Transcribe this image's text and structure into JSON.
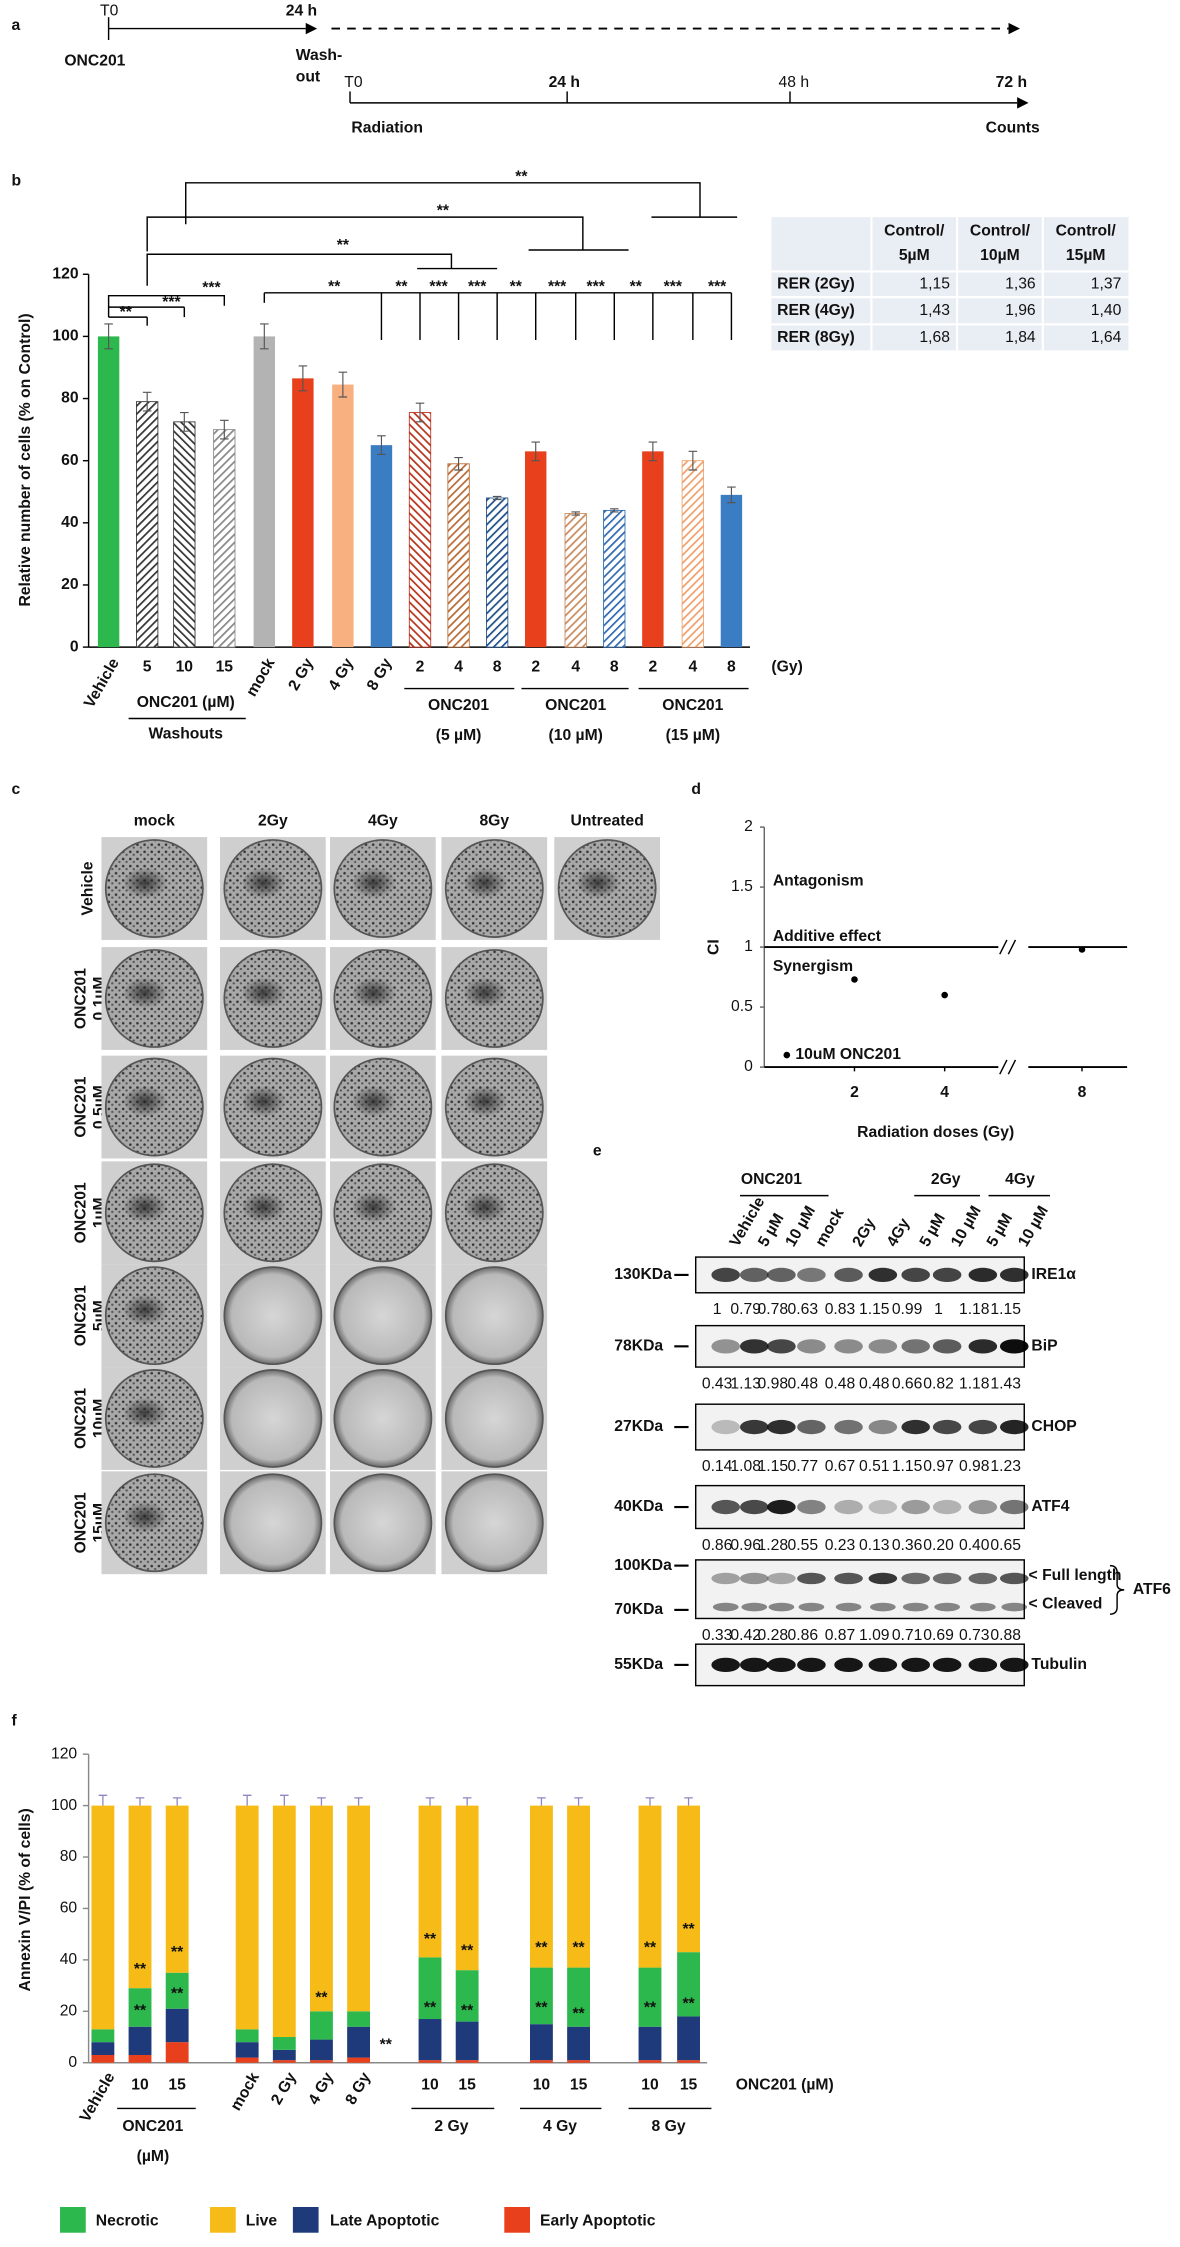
{
  "panel_a": {
    "label": "a",
    "t0": "T0",
    "t24": "24 h",
    "drug": "ONC201",
    "washout": [
      "Wash-",
      "out"
    ],
    "rt0": "T0",
    "r24": "24 h",
    "r48": "48 h",
    "r72": "72 h",
    "radiation": "Radiation",
    "counts": "Counts"
  },
  "chart_data": [
    {
      "type": "bar",
      "panel": "b",
      "ylabel": "Relative number of cells (% on Control)",
      "categories": [
        "Vehicle",
        "5",
        "10",
        "15",
        "mock",
        "2 Gy",
        "4 Gy",
        "8 Gy",
        "2",
        "4",
        "8",
        "2",
        "4",
        "8",
        "2",
        "4",
        "8"
      ],
      "values": [
        100,
        79,
        72.5,
        70,
        100,
        86.5,
        84.5,
        65,
        75.5,
        59,
        48,
        63,
        43,
        44,
        63,
        60,
        49
      ],
      "errors": [
        4,
        3,
        3,
        3,
        4,
        4,
        4,
        3,
        3,
        2,
        0.5,
        3,
        0.5,
        0.5,
        3,
        3,
        2.5
      ],
      "colors": [
        "#2cb84c",
        "#333333",
        "#333333",
        "#888888",
        "#b3b3b3",
        "#e8401c",
        "#f8b080",
        "#3b7dc2",
        "#b8321a",
        "#b86a35",
        "#1f4f8a",
        "#e8401c",
        "#c98a5e",
        "#2e6bb0",
        "#e8401c",
        "#f0a06a",
        "#3b7dc2"
      ],
      "hatched": [
        false,
        true,
        true,
        true,
        false,
        false,
        false,
        false,
        true,
        true,
        true,
        false,
        true,
        true,
        false,
        true,
        false
      ],
      "ylim": [
        0,
        120
      ],
      "yticks": [
        0,
        20,
        40,
        60,
        80,
        100,
        120
      ],
      "unit": "(Gy)",
      "groups": [
        [
          "ONC201 (µM)",
          "Washouts"
        ],
        [
          "ONC201",
          "(5 µM)"
        ],
        [
          "ONC201",
          "(10 µM)"
        ],
        [
          "ONC201",
          "(15 µM)"
        ]
      ],
      "annotations": [
        "**",
        "**",
        "**",
        "**",
        "***",
        "***",
        "**",
        "**",
        "***",
        "***",
        "**",
        "***",
        "***",
        "**",
        "***",
        "***"
      ]
    },
    {
      "type": "scatter",
      "panel": "d",
      "ylabel": "CI",
      "xlabel": "Radiation doses (Gy)",
      "x": [
        0.5,
        2,
        4,
        8
      ],
      "y": [
        0.1,
        0.73,
        0.6,
        0.98
      ],
      "labels": [
        "10uM ONC201",
        null,
        null,
        null
      ],
      "color": "#000000",
      "xlim": [
        0,
        9
      ],
      "xbreak": [
        5,
        7
      ],
      "xticks": [
        2,
        4,
        8
      ],
      "ylim": [
        0,
        2
      ],
      "yticks": [
        0,
        0.5,
        1,
        1.5,
        2
      ],
      "hline": 1,
      "annotations": [
        "Antagonism",
        "Additive effect",
        "Synergism"
      ]
    },
    {
      "type": "stacked_bar",
      "panel": "f",
      "ylabel": "Annexin V/PI (% of cells)",
      "categories": [
        "Vehicle",
        "10",
        "15",
        "mock",
        "2 Gy",
        "4 Gy",
        "8 Gy",
        "10",
        "15",
        "10",
        "15",
        "10",
        "15"
      ],
      "series": [
        {
          "name": "Early Apoptotic",
          "color": "#e8401c",
          "values": [
            3,
            3,
            8,
            2,
            1,
            1,
            2,
            1,
            1,
            1,
            1,
            1,
            1
          ]
        },
        {
          "name": "Late Apoptotic",
          "color": "#1f3a7a",
          "values": [
            5,
            11,
            13,
            6,
            4,
            8,
            12,
            16,
            15,
            14,
            13,
            13,
            17
          ]
        },
        {
          "name": "Necrotic",
          "color": "#2cb84c",
          "values": [
            5,
            15,
            14,
            5,
            5,
            11,
            6,
            24,
            20,
            22,
            23,
            23,
            25
          ]
        },
        {
          "name": "Live",
          "color": "#f6bb16",
          "values": [
            87,
            71,
            65,
            87,
            90,
            80,
            80,
            59,
            64,
            63,
            63,
            63,
            57
          ]
        }
      ],
      "errors": [
        4,
        3,
        3,
        4,
        4,
        3,
        3,
        3,
        3,
        3,
        3,
        3,
        3
      ],
      "ylim": [
        0,
        120
      ],
      "yticks": [
        0,
        20,
        40,
        60,
        80,
        100,
        120
      ],
      "xlabel": "ONC201 (µM)",
      "groups": [
        [
          "ONC201",
          "(µM)"
        ],
        [
          "2 Gy"
        ],
        [
          "4 Gy"
        ],
        [
          "8 Gy"
        ]
      ],
      "annotations": [
        "**",
        "**",
        "**",
        "**",
        "**",
        "**",
        "**",
        "**",
        "**",
        "**",
        "**",
        "**",
        "**",
        "**",
        "**",
        "**",
        "**",
        "**"
      ]
    }
  ],
  "table": {
    "columns": [
      [
        "Control/",
        "5µM"
      ],
      [
        "Control/",
        "10µM"
      ],
      [
        "Control/",
        "15µM"
      ]
    ],
    "rows": [
      [
        "RER (2Gy)",
        "1,15",
        "1,36",
        "1,37"
      ],
      [
        "RER (4Gy)",
        "1,43",
        "1,96",
        "1,40"
      ],
      [
        "RER (8Gy)",
        "1,68",
        "1,84",
        "1,64"
      ]
    ]
  },
  "panel_c": {
    "label": "c",
    "columns": [
      "mock",
      "2Gy",
      "4Gy",
      "8Gy",
      "Untreated"
    ],
    "rows": [
      [
        "Vehicle"
      ],
      [
        "ONC201",
        "0.1µM"
      ],
      [
        "ONC201",
        "0.5µM"
      ],
      [
        "ONC201",
        "1µM"
      ],
      [
        "ONC201",
        "5µM"
      ],
      [
        "ONC201",
        "10µM"
      ],
      [
        "ONC201",
        "15µM"
      ]
    ]
  },
  "panel_e": {
    "label": "e",
    "groups": [
      "ONC201",
      "2Gy",
      "4Gy"
    ],
    "lanes": [
      "Vehicle",
      "5 µM",
      "10 µM",
      "mock",
      "2Gy",
      "4Gy",
      "5 µM",
      "10 µM",
      "5 µM",
      "10 µM"
    ],
    "blots": [
      {
        "markers": [
          "130KDa"
        ],
        "name": "IRE1α",
        "values": [
          "1",
          "0.79",
          "0.78",
          "0.63",
          "0.83",
          "1.15",
          "0.99",
          "1",
          "1.18",
          "1.15"
        ]
      },
      {
        "markers": [
          "78KDa"
        ],
        "name": "BiP",
        "values": [
          "0.43",
          "1.13",
          "0.98",
          "0.48",
          "0.48",
          "0.48",
          "0.66",
          "0.82",
          "1.18",
          "1.43"
        ]
      },
      {
        "markers": [
          "27KDa"
        ],
        "name": "CHOP",
        "values": [
          "0.14",
          "1.08",
          "1.15",
          "0.77",
          "0.67",
          "0.51",
          "1.15",
          "0.97",
          "0.98",
          "1.23"
        ]
      },
      {
        "markers": [
          "40KDa"
        ],
        "name": "ATF4",
        "values": [
          "0.86",
          "0.96",
          "1.28",
          "0.55",
          "0.23",
          "0.13",
          "0.36",
          "0.20",
          "0.40",
          "0.65"
        ]
      },
      {
        "markers": [
          "100KDa",
          "70KDa"
        ],
        "bands": [
          "< Full length",
          "< Cleaved"
        ],
        "name": "ATF6",
        "values": [
          "0.33",
          "0.42",
          "0.28",
          "0.86",
          "0.87",
          "1.09",
          "0.71",
          "0.69",
          "0.73",
          "0.88"
        ]
      },
      {
        "markers": [
          "55KDa"
        ],
        "name": "Tubulin"
      }
    ]
  }
}
